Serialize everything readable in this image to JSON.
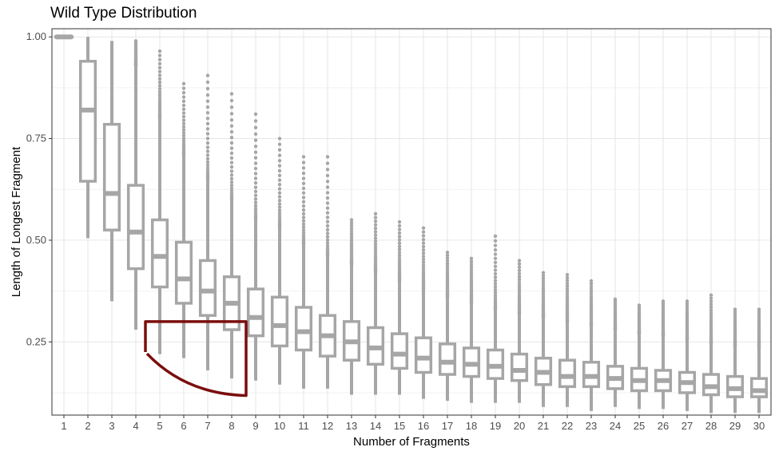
{
  "chart_data": {
    "type": "box",
    "title": "Wild Type Distribution",
    "xlabel": "Number of Fragments",
    "ylabel": "Length of Longest Fragment",
    "ylim": [
      0.07,
      1.02
    ],
    "yticks": [
      0.25,
      0.5,
      0.75,
      1.0
    ],
    "ytick_labels": [
      "0.25",
      "0.50",
      "0.75",
      "1.00"
    ],
    "grid": true,
    "box_color": "#a6a6a6",
    "annotation_color": "#7b0d0d",
    "categories": [
      "1",
      "2",
      "3",
      "4",
      "5",
      "6",
      "7",
      "8",
      "9",
      "10",
      "11",
      "12",
      "13",
      "14",
      "15",
      "16",
      "17",
      "18",
      "19",
      "20",
      "21",
      "22",
      "23",
      "24",
      "25",
      "26",
      "27",
      "28",
      "29",
      "30"
    ],
    "boxes": [
      {
        "x": "1",
        "min": 1.0,
        "q1": 1.0,
        "median": 1.0,
        "q3": 1.0,
        "max": 1.0,
        "outlier_max": 1.0
      },
      {
        "x": "2",
        "min": 0.505,
        "q1": 0.645,
        "median": 0.82,
        "q3": 0.94,
        "max": 1.0,
        "outlier_max": 1.0
      },
      {
        "x": "3",
        "min": 0.35,
        "q1": 0.525,
        "median": 0.615,
        "q3": 0.785,
        "max": 0.99,
        "outlier_max": 0.99
      },
      {
        "x": "4",
        "min": 0.28,
        "q1": 0.43,
        "median": 0.52,
        "q3": 0.635,
        "max": 0.93,
        "outlier_max": 0.99
      },
      {
        "x": "5",
        "min": 0.22,
        "q1": 0.385,
        "median": 0.46,
        "q3": 0.55,
        "max": 0.8,
        "outlier_max": 0.965
      },
      {
        "x": "6",
        "min": 0.21,
        "q1": 0.345,
        "median": 0.405,
        "q3": 0.495,
        "max": 0.71,
        "outlier_max": 0.885
      },
      {
        "x": "7",
        "min": 0.18,
        "q1": 0.315,
        "median": 0.375,
        "q3": 0.45,
        "max": 0.65,
        "outlier_max": 0.905
      },
      {
        "x": "8",
        "min": 0.16,
        "q1": 0.28,
        "median": 0.345,
        "q3": 0.41,
        "max": 0.6,
        "outlier_max": 0.86
      },
      {
        "x": "9",
        "min": 0.155,
        "q1": 0.265,
        "median": 0.31,
        "q3": 0.38,
        "max": 0.55,
        "outlier_max": 0.81
      },
      {
        "x": "10",
        "min": 0.145,
        "q1": 0.24,
        "median": 0.29,
        "q3": 0.36,
        "max": 0.53,
        "outlier_max": 0.75
      },
      {
        "x": "11",
        "min": 0.135,
        "q1": 0.23,
        "median": 0.275,
        "q3": 0.335,
        "max": 0.49,
        "outlier_max": 0.705
      },
      {
        "x": "12",
        "min": 0.135,
        "q1": 0.215,
        "median": 0.265,
        "q3": 0.315,
        "max": 0.46,
        "outlier_max": 0.705
      },
      {
        "x": "13",
        "min": 0.12,
        "q1": 0.205,
        "median": 0.25,
        "q3": 0.3,
        "max": 0.44,
        "outlier_max": 0.55
      },
      {
        "x": "14",
        "min": 0.12,
        "q1": 0.195,
        "median": 0.235,
        "q3": 0.285,
        "max": 0.42,
        "outlier_max": 0.565
      },
      {
        "x": "15",
        "min": 0.12,
        "q1": 0.185,
        "median": 0.22,
        "q3": 0.27,
        "max": 0.4,
        "outlier_max": 0.545
      },
      {
        "x": "16",
        "min": 0.11,
        "q1": 0.175,
        "median": 0.21,
        "q3": 0.26,
        "max": 0.38,
        "outlier_max": 0.53
      },
      {
        "x": "17",
        "min": 0.105,
        "q1": 0.17,
        "median": 0.2,
        "q3": 0.245,
        "max": 0.36,
        "outlier_max": 0.47
      },
      {
        "x": "18",
        "min": 0.1,
        "q1": 0.165,
        "median": 0.195,
        "q3": 0.235,
        "max": 0.345,
        "outlier_max": 0.455
      },
      {
        "x": "19",
        "min": 0.1,
        "q1": 0.16,
        "median": 0.19,
        "q3": 0.23,
        "max": 0.33,
        "outlier_max": 0.51
      },
      {
        "x": "20",
        "min": 0.1,
        "q1": 0.155,
        "median": 0.18,
        "q3": 0.22,
        "max": 0.32,
        "outlier_max": 0.45
      },
      {
        "x": "21",
        "min": 0.09,
        "q1": 0.145,
        "median": 0.175,
        "q3": 0.21,
        "max": 0.31,
        "outlier_max": 0.42
      },
      {
        "x": "22",
        "min": 0.09,
        "q1": 0.14,
        "median": 0.165,
        "q3": 0.205,
        "max": 0.3,
        "outlier_max": 0.415
      },
      {
        "x": "23",
        "min": 0.08,
        "q1": 0.14,
        "median": 0.165,
        "q3": 0.2,
        "max": 0.29,
        "outlier_max": 0.4
      },
      {
        "x": "24",
        "min": 0.09,
        "q1": 0.135,
        "median": 0.16,
        "q3": 0.19,
        "max": 0.28,
        "outlier_max": 0.355
      },
      {
        "x": "25",
        "min": 0.085,
        "q1": 0.13,
        "median": 0.155,
        "q3": 0.185,
        "max": 0.27,
        "outlier_max": 0.34
      },
      {
        "x": "26",
        "min": 0.085,
        "q1": 0.13,
        "median": 0.155,
        "q3": 0.18,
        "max": 0.265,
        "outlier_max": 0.35
      },
      {
        "x": "27",
        "min": 0.08,
        "q1": 0.125,
        "median": 0.15,
        "q3": 0.175,
        "max": 0.255,
        "outlier_max": 0.35
      },
      {
        "x": "28",
        "min": 0.075,
        "q1": 0.12,
        "median": 0.14,
        "q3": 0.17,
        "max": 0.245,
        "outlier_max": 0.365
      },
      {
        "x": "29",
        "min": 0.075,
        "q1": 0.115,
        "median": 0.135,
        "q3": 0.165,
        "max": 0.24,
        "outlier_max": 0.33
      },
      {
        "x": "30",
        "min": 0.075,
        "q1": 0.115,
        "median": 0.13,
        "q3": 0.16,
        "max": 0.235,
        "outlier_max": 0.33
      }
    ],
    "annotation": {
      "shape": "bracket",
      "x_from": 4.4,
      "x_to": 8.6,
      "y_top": 0.3,
      "y_left_low": 0.225,
      "y_right_low": 0.118
    }
  }
}
